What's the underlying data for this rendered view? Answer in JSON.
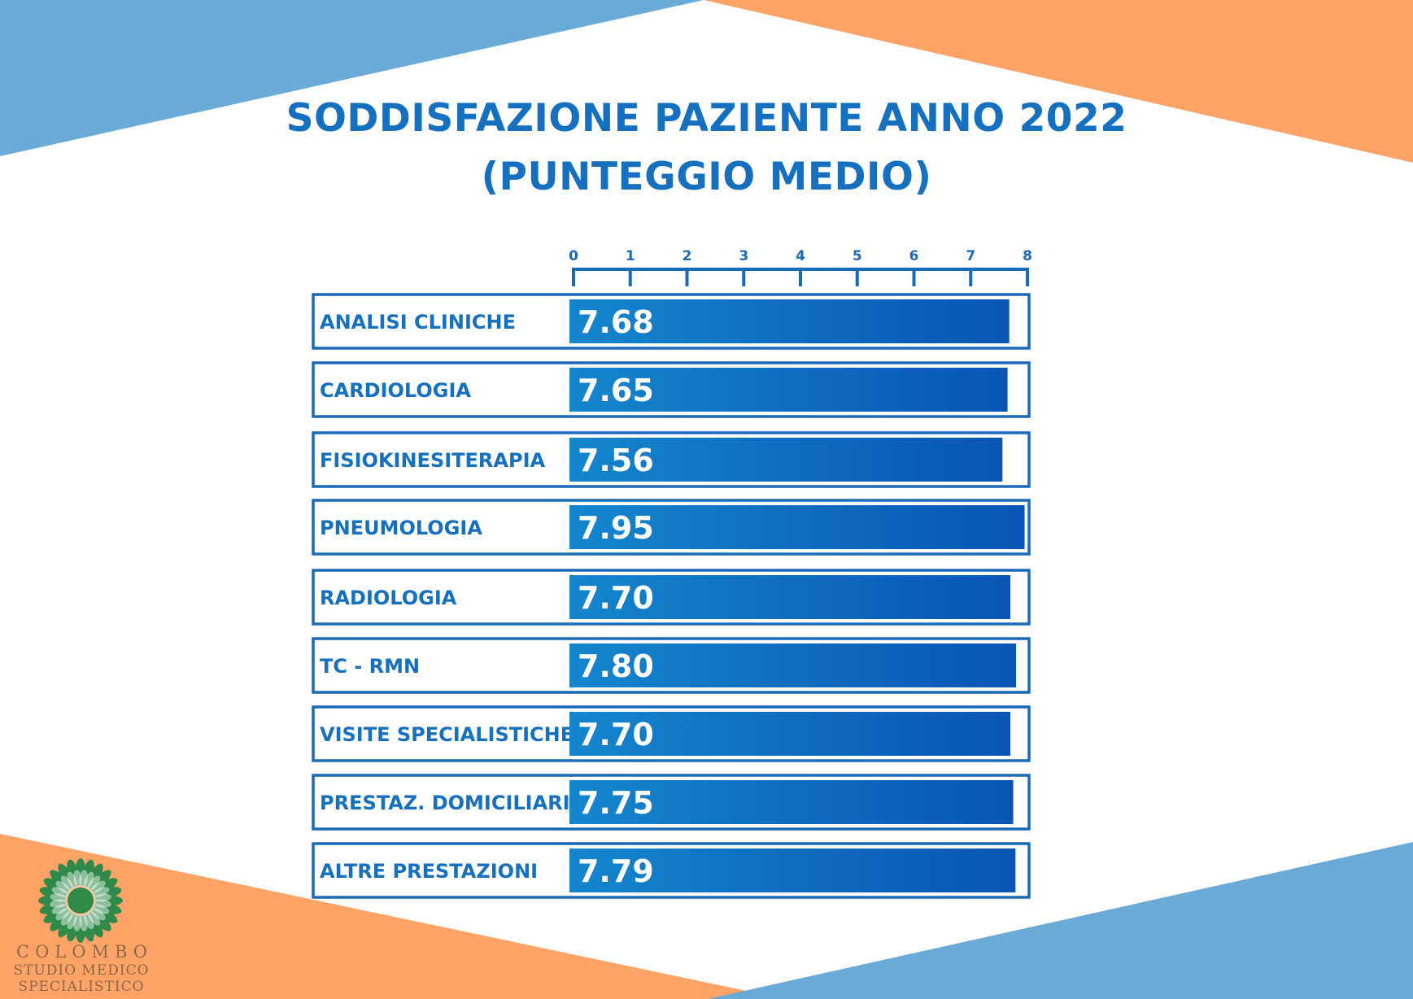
{
  "colors": {
    "blue_corner": "#69aad6",
    "orange_corner": "#ffa366",
    "title": "#1570c0",
    "frame": "#1a6ab8",
    "bar_start": "#1486cf",
    "bar_end": "#0a55b4",
    "bar_label": "#ffffff",
    "logo_green": "#2f8a4a",
    "logo_text": "#8a6a4a"
  },
  "title_line1": "SODDISFAZIONE PAZIENTE ANNO 2022",
  "title_line2": "(PUNTEGGIO MEDIO)",
  "chart_data": {
    "type": "bar",
    "orientation": "horizontal",
    "title": "SODDISFAZIONE PAZIENTE ANNO 2022 (PUNTEGGIO MEDIO)",
    "xlim": [
      0,
      8
    ],
    "ticks": [
      "0",
      "1",
      "2",
      "3",
      "4",
      "5",
      "6",
      "7",
      "8"
    ],
    "axis_position": "top",
    "grid": false,
    "categories": [
      "ANALISI CLINICHE",
      "CARDIOLOGIA",
      "FISIOKINESITERAPIA",
      "PNEUMOLOGIA",
      "RADIOLOGIA",
      "TC - RMN",
      "VISITE SPECIALISTICHE",
      "PRESTAZ. DOMICILIARI",
      "ALTRE PRESTAZIONI"
    ],
    "values": [
      7.68,
      7.65,
      7.56,
      7.95,
      7.7,
      7.8,
      7.7,
      7.75,
      7.79
    ],
    "value_labels": [
      "7.68",
      "7.65",
      "7.56",
      "7.95",
      "7.70",
      "7.80",
      "7.70",
      "7.75",
      "7.79"
    ]
  },
  "logo": {
    "name": "COLOMBO",
    "line1": "STUDIO MEDICO",
    "line2": "SPECIALISTICO",
    "icon": "sunflower-icon"
  }
}
